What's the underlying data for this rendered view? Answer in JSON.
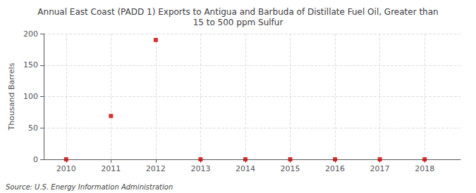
{
  "chart_data": {
    "type": "scatter",
    "title": "Annual East Coast (PADD 1) Exports to Antigua and Barbuda of Distillate Fuel Oil, Greater than\n15 to 500 ppm Sulfur",
    "y_label": "Thousand Barrels",
    "annotations": [
      "Source: U.S. Energy Information Administration"
    ],
    "x": [
      2010,
      2011,
      2012,
      2013,
      2014,
      2015,
      2016,
      2017,
      2018
    ],
    "values": [
      0,
      69,
      190,
      0,
      0,
      0,
      0,
      0,
      0
    ],
    "color": "#cc0000",
    "marker": "square",
    "xlim": [
      2009.5,
      2018.8
    ],
    "xticks": [
      2010,
      2011,
      2012,
      2013,
      2014,
      2015,
      2016,
      2017,
      2018
    ],
    "ylim": [
      0,
      200
    ],
    "yticks": [
      0,
      50,
      100,
      150,
      200
    ],
    "grid": true
  }
}
